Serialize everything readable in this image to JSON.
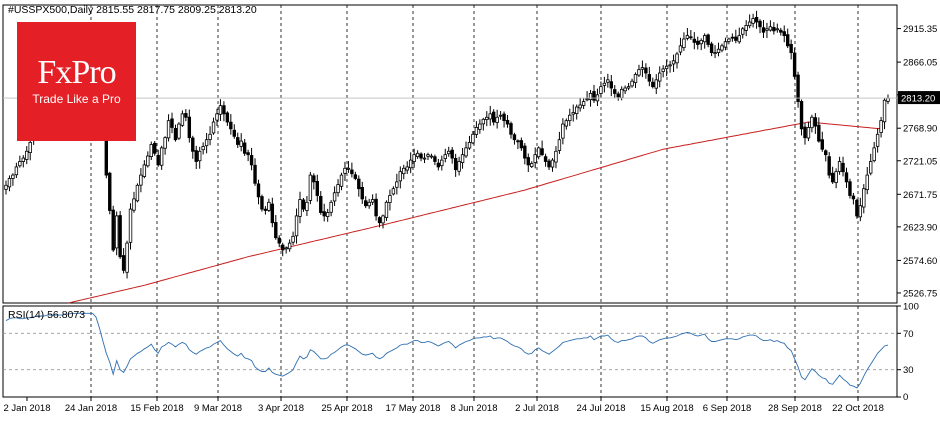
{
  "header": {
    "symbol_line": "#USSPX500,Daily  2815.55 2817.75 2809.25 2813.20"
  },
  "logo": {
    "brand": "FxPro",
    "tagline": "Trade Like a Pro",
    "color": "#e41f26"
  },
  "colors": {
    "candles": "#000000",
    "moving_average": "#c81e1e",
    "rsi_line": "#2f6fb0",
    "grid": "#000000",
    "last_price_label_bg": "#000000",
    "last_price_label_text": "#ffffff"
  },
  "chart_data": [
    {
      "type": "candlestick",
      "name": "price",
      "ylim": [
        2512,
        2950
      ],
      "y_ticks": [
        "2915.35",
        "2866.05",
        "2818.10",
        "2768.90",
        "2721.05",
        "2671.75",
        "2623.90",
        "2574.60",
        "2526.75"
      ],
      "y_tick_values": [
        2915.35,
        2866.05,
        2818.1,
        2768.9,
        2721.05,
        2671.75,
        2623.9,
        2574.6,
        2526.75
      ],
      "x_tick_labels": [
        "2 Jan 2018",
        "24 Jan 2018",
        "15 Feb 2018",
        "9 Mar 2018",
        "3 Apr 2018",
        "25 Apr 2018",
        "17 May 2018",
        "8 Jun 2018",
        "2 Jul 2018",
        "24 Jul 2018",
        "15 Aug 2018",
        "6 Sep 2018",
        "28 Sep 2018",
        "22 Oct 2018"
      ],
      "last_price": 2813.2,
      "last_price_label": "2813.20",
      "grid": "vertical dashed at date ticks",
      "close_series": [
        2685,
        2695,
        2700,
        2712,
        2720,
        2725,
        2735,
        2748,
        2755,
        2760,
        2770,
        2778,
        2782,
        2790,
        2800,
        2805,
        2810,
        2818,
        2825,
        2830,
        2835,
        2840,
        2845,
        2848,
        2850,
        2860,
        2855,
        2800,
        2760,
        2700,
        2648,
        2590,
        2640,
        2580,
        2560,
        2600,
        2650,
        2665,
        2685,
        2700,
        2715,
        2728,
        2745,
        2732,
        2715,
        2740,
        2755,
        2780,
        2770,
        2752,
        2775,
        2790,
        2785,
        2755,
        2735,
        2720,
        2735,
        2742,
        2752,
        2760,
        2778,
        2790,
        2802,
        2790,
        2778,
        2768,
        2757,
        2745,
        2750,
        2732,
        2730,
        2715,
        2688,
        2668,
        2650,
        2648,
        2660,
        2630,
        2608,
        2600,
        2590,
        2593,
        2600,
        2610,
        2640,
        2664,
        2650,
        2660,
        2700,
        2690,
        2670,
        2645,
        2640,
        2645,
        2660,
        2674,
        2686,
        2700,
        2710,
        2710,
        2702,
        2695,
        2680,
        2665,
        2655,
        2660,
        2664,
        2640,
        2630,
        2640,
        2660,
        2670,
        2680,
        2690,
        2705,
        2710,
        2712,
        2722,
        2730,
        2732,
        2725,
        2725,
        2730,
        2728,
        2720,
        2712,
        2722,
        2730,
        2735,
        2725,
        2708,
        2720,
        2730,
        2740,
        2748,
        2760,
        2770,
        2775,
        2782,
        2785,
        2790,
        2778,
        2785,
        2788,
        2780,
        2775,
        2760,
        2752,
        2750,
        2740,
        2725,
        2715,
        2717,
        2730,
        2740,
        2730,
        2720,
        2712,
        2722,
        2735,
        2752,
        2775,
        2780,
        2788,
        2792,
        2800,
        2803,
        2808,
        2812,
        2820,
        2810,
        2818,
        2830,
        2835,
        2840,
        2828,
        2820,
        2815,
        2826,
        2828,
        2830,
        2838,
        2848,
        2855,
        2858,
        2850,
        2838,
        2830,
        2840,
        2850,
        2856,
        2860,
        2862,
        2868,
        2878,
        2890,
        2900,
        2905,
        2902,
        2895,
        2892,
        2898,
        2905,
        2892,
        2880,
        2880,
        2885,
        2890,
        2896,
        2900,
        2902,
        2898,
        2905,
        2915,
        2920,
        2925,
        2930,
        2925,
        2918,
        2910,
        2915,
        2918,
        2912,
        2915,
        2910,
        2905,
        2890,
        2880,
        2845,
        2808,
        2768,
        2755,
        2770,
        2785,
        2772,
        2750,
        2738,
        2730,
        2700,
        2690,
        2705,
        2720,
        2705,
        2690,
        2670,
        2665,
        2640,
        2655,
        2680,
        2700,
        2720,
        2740,
        2760,
        2780,
        2810,
        2813
      ],
      "ma_series_desc": "200-period moving average, rising from ~2520 in late Jan to ~2776 in late Sep, flattening to ~2768 at end",
      "ma_anchor_points": [
        [
          18,
          2512
        ],
        [
          40,
          2538
        ],
        [
          70,
          2580
        ],
        [
          110,
          2628
        ],
        [
          150,
          2678
        ],
        [
          190,
          2738
        ],
        [
          232,
          2778
        ],
        [
          253,
          2768
        ]
      ]
    },
    {
      "type": "line",
      "name": "RSI(14)",
      "label": "RSI(14) 56.8073",
      "ylim": [
        0,
        100
      ],
      "y_ticks": [
        "100",
        "70",
        "30",
        "0"
      ],
      "y_tick_values": [
        100,
        70,
        30,
        0
      ],
      "levels": [
        70,
        30
      ],
      "values": [
        84,
        86,
        87,
        87,
        86,
        86,
        87,
        87,
        88,
        89,
        89,
        89,
        90,
        90,
        90,
        90,
        90,
        91,
        91,
        92,
        92,
        92,
        92,
        92,
        92,
        92,
        88,
        76,
        62,
        48,
        38,
        25,
        40,
        30,
        27,
        34,
        42,
        45,
        48,
        50,
        53,
        55,
        58,
        52,
        48,
        55,
        57,
        60,
        58,
        55,
        58,
        60,
        58,
        52,
        49,
        47,
        50,
        52,
        54,
        55,
        58,
        60,
        62,
        57,
        53,
        50,
        47,
        45,
        48,
        43,
        42,
        40,
        33,
        30,
        28,
        28,
        32,
        27,
        25,
        24,
        23,
        25,
        27,
        30,
        38,
        45,
        42,
        44,
        52,
        50,
        46,
        42,
        42,
        43,
        47,
        49,
        52,
        55,
        57,
        57,
        55,
        53,
        50,
        47,
        46,
        47,
        48,
        44,
        42,
        44,
        48,
        50,
        52,
        54,
        57,
        58,
        58,
        60,
        62,
        62,
        60,
        60,
        61,
        60,
        58,
        56,
        58,
        60,
        61,
        58,
        54,
        57,
        59,
        61,
        62,
        64,
        65,
        65,
        66,
        66,
        67,
        64,
        65,
        65,
        63,
        61,
        58,
        56,
        55,
        53,
        49,
        47,
        48,
        52,
        54,
        51,
        49,
        47,
        50,
        53,
        56,
        60,
        61,
        62,
        63,
        64,
        64,
        65,
        65,
        67,
        63,
        65,
        67,
        67,
        68,
        64,
        61,
        60,
        62,
        62,
        63,
        64,
        66,
        67,
        67,
        65,
        61,
        59,
        61,
        63,
        64,
        65,
        65,
        66,
        67,
        69,
        70,
        71,
        70,
        68,
        67,
        68,
        69,
        64,
        61,
        61,
        62,
        63,
        64,
        64,
        64,
        63,
        64,
        66,
        67,
        68,
        68,
        67,
        64,
        62,
        62,
        63,
        61,
        62,
        60,
        59,
        54,
        51,
        42,
        33,
        22,
        19,
        25,
        31,
        28,
        24,
        21,
        20,
        15,
        14,
        19,
        24,
        20,
        17,
        13,
        12,
        10,
        15,
        23,
        30,
        36,
        42,
        48,
        52,
        56,
        57
      ]
    }
  ]
}
